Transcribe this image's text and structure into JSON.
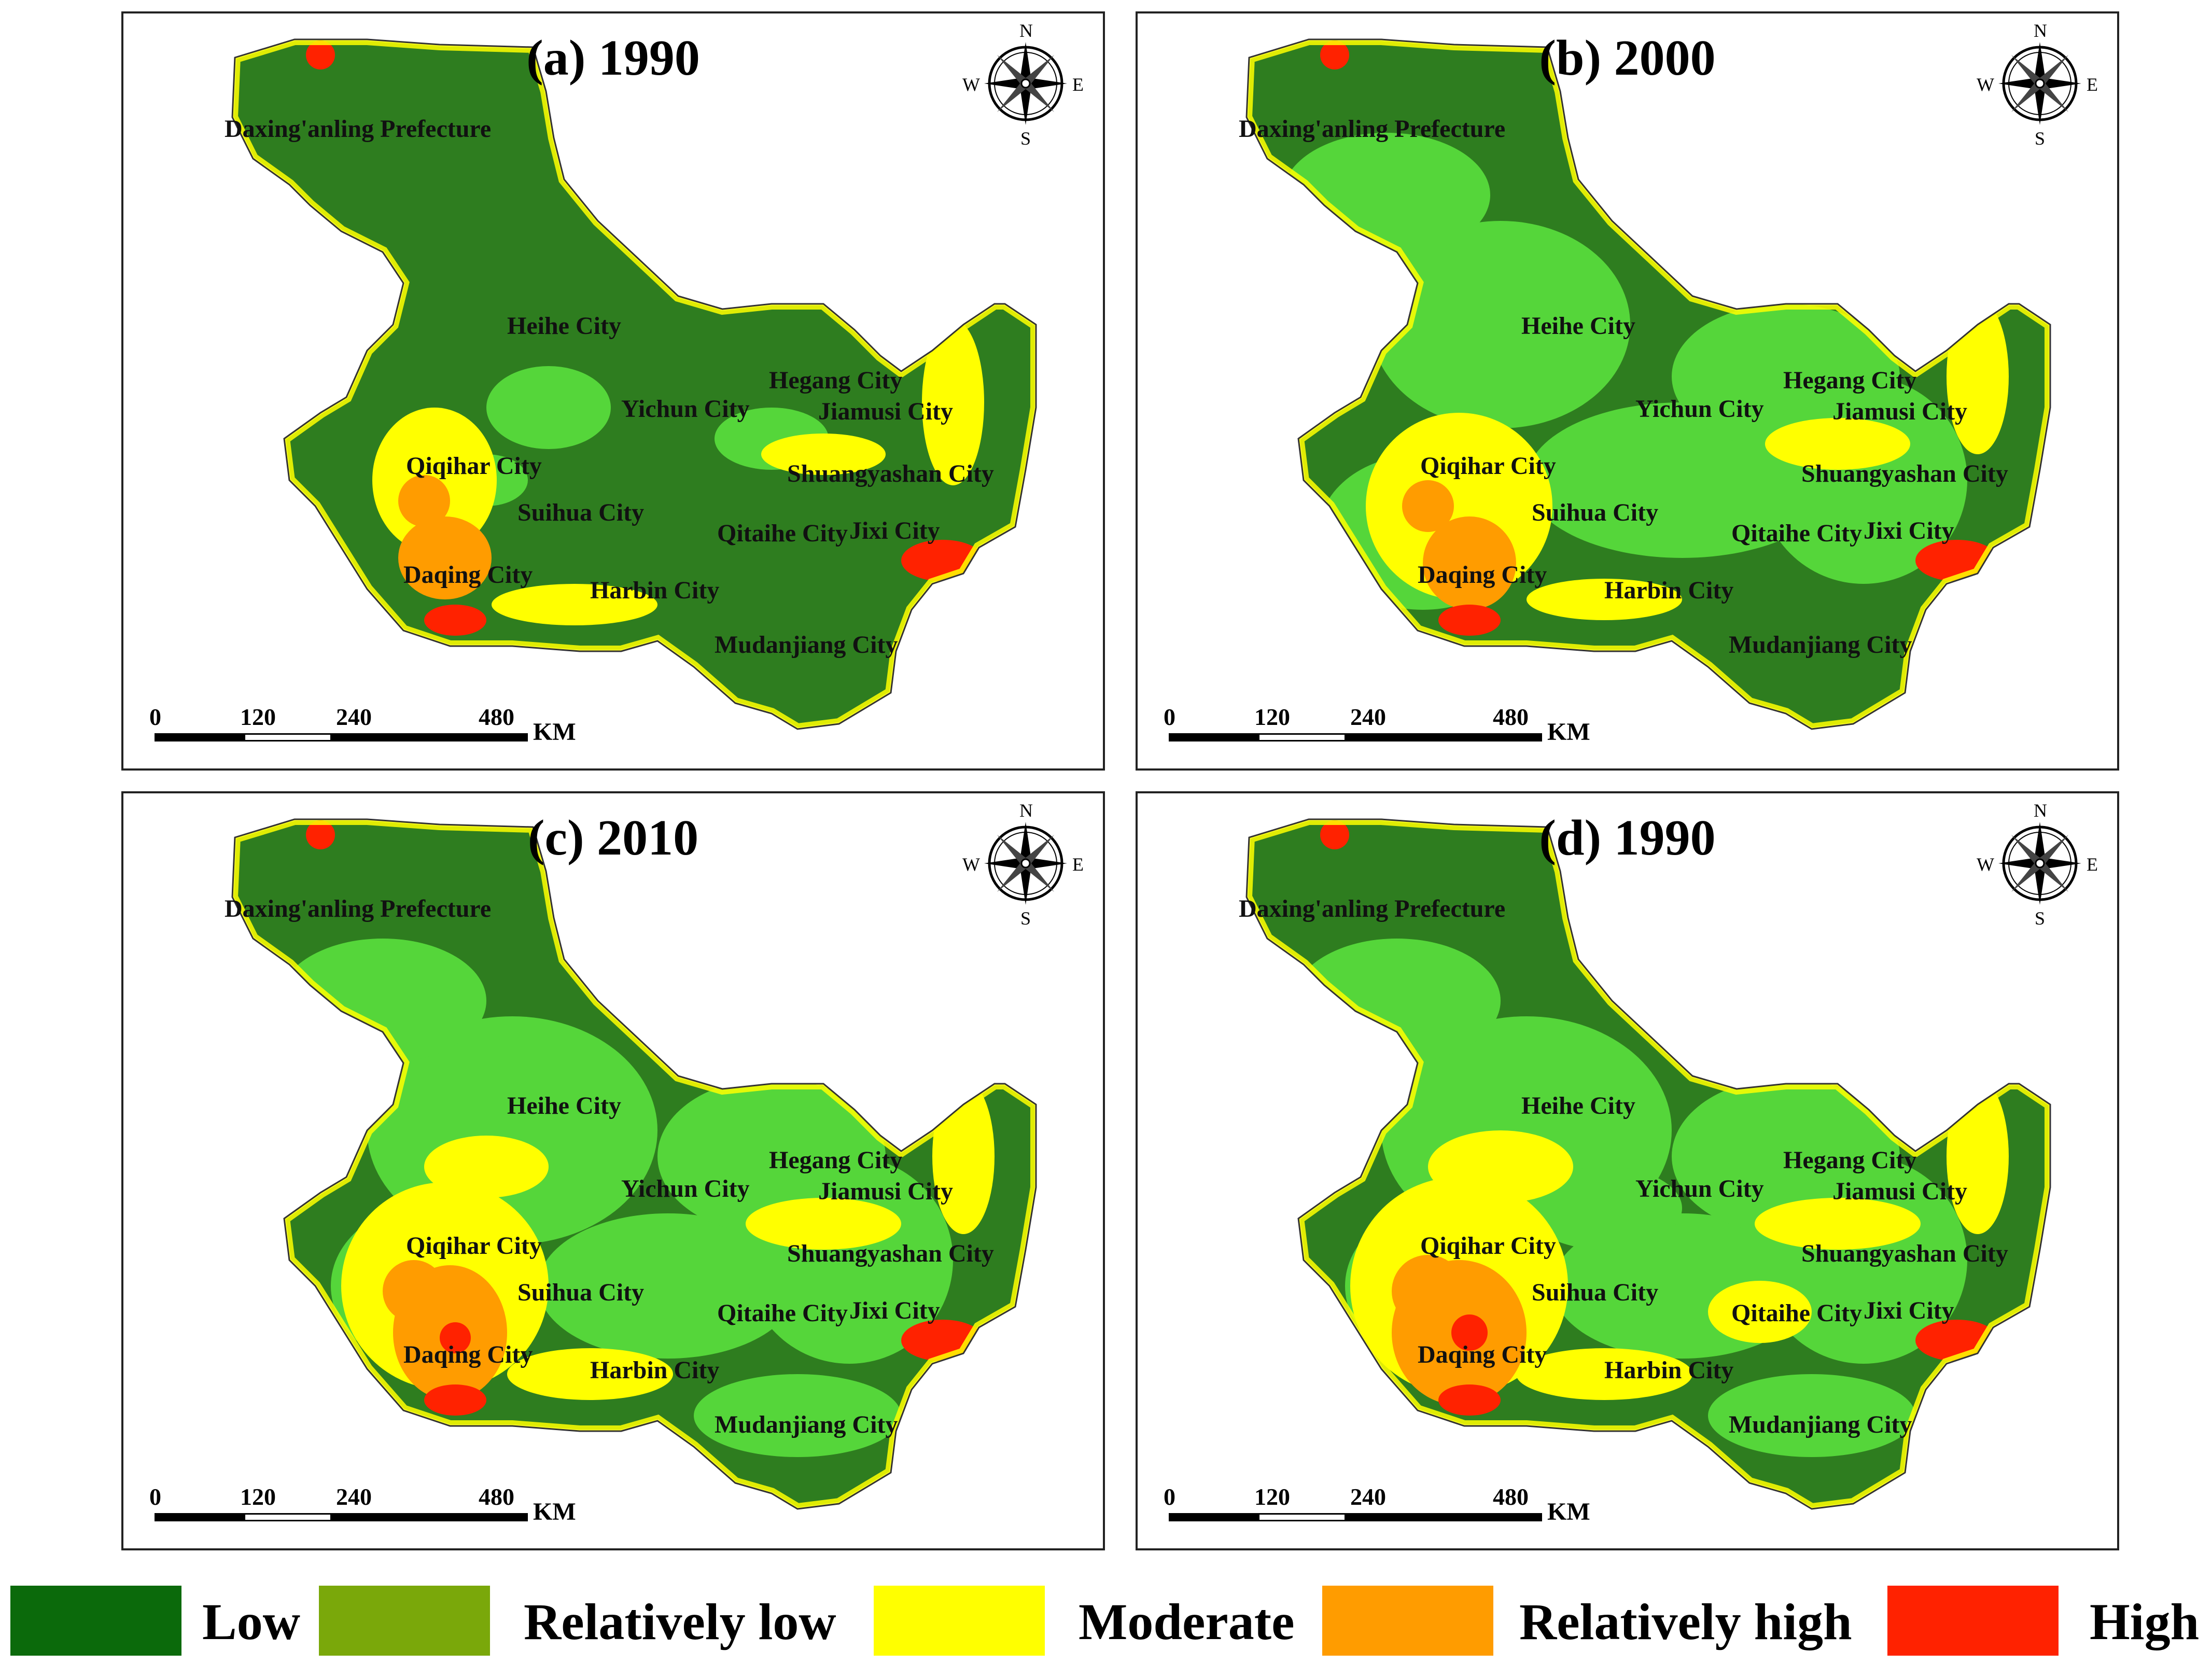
{
  "panels": [
    {
      "id": "a",
      "title": "(a) 1990"
    },
    {
      "id": "b",
      "title": "(b) 2000"
    },
    {
      "id": "c",
      "title": "(c) 2010"
    },
    {
      "id": "d",
      "title": "(d) 1990"
    }
  ],
  "cities": {
    "daxinganling": "Daxing'anling Prefecture",
    "heihe": "Heihe City",
    "hegang": "Hegang City",
    "yichun": "Yichun City",
    "jiamusi": "Jiamusi City",
    "qiqihar": "Qiqihar City",
    "shuangyashan": "Shuangyashan City",
    "suihua": "Suihua City",
    "qitaihe": "Qitaihe City",
    "jixi": "Jixi City",
    "daqing": "Daqing City",
    "harbin": "Harbin City",
    "mudanjiang": "Mudanjiang City"
  },
  "compass": {
    "n": "N",
    "s": "S",
    "e": "E",
    "w": "W"
  },
  "scale": {
    "t0": "0",
    "t1": "120",
    "t2": "240",
    "t3": "480",
    "unit": "KM"
  },
  "legend": [
    {
      "label": "Low",
      "color": "#0b6a0b"
    },
    {
      "label": "Relatively low",
      "color": "#7aa80a"
    },
    {
      "label": "Moderate",
      "color": "#ffff00"
    },
    {
      "label": "Relatively high",
      "color": "#ff9c00"
    },
    {
      "label": "High",
      "color": "#ff2200"
    }
  ],
  "colors": {
    "dark_green": "#2e7d1f",
    "light_green": "#55d63a",
    "yellow": "#ffff00",
    "orange": "#ff9c00",
    "red": "#ff2200"
  }
}
